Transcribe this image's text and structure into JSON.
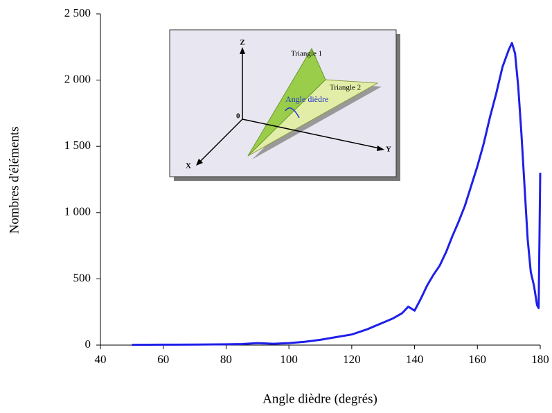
{
  "chart_data": {
    "type": "line",
    "xlabel": "Angle dièdre (degrés)",
    "ylabel": "Nombres d'éléments",
    "x": [
      50,
      60,
      70,
      80,
      85,
      90,
      95,
      100,
      105,
      110,
      115,
      120,
      125,
      130,
      133,
      136,
      138,
      140,
      142,
      144,
      146,
      148,
      150,
      152,
      154,
      156,
      158,
      160,
      162,
      164,
      166,
      168,
      170,
      171,
      172,
      173,
      174,
      175,
      176,
      177,
      178,
      179,
      179.5,
      180
    ],
    "values": [
      2,
      3,
      4,
      6,
      8,
      15,
      10,
      15,
      25,
      40,
      60,
      80,
      120,
      170,
      200,
      240,
      290,
      260,
      350,
      450,
      530,
      600,
      700,
      820,
      930,
      1050,
      1200,
      1350,
      1520,
      1720,
      1900,
      2100,
      2230,
      2280,
      2200,
      1950,
      1600,
      1200,
      800,
      550,
      450,
      300,
      280,
      1300
    ],
    "color": "#1f1fe8",
    "xlim": [
      40,
      180
    ],
    "xticks": [
      40,
      60,
      80,
      100,
      120,
      140,
      160,
      180
    ],
    "ylim": [
      0,
      2500
    ],
    "yticks": [
      0,
      500,
      {
        "value": 1000,
        "label": "1 000"
      },
      {
        "value": 1500,
        "label": "1 500"
      },
      {
        "value": 2000,
        "label": "2 000"
      },
      {
        "value": 2500,
        "label": "2 500"
      }
    ],
    "grid": false,
    "annotations": [
      "Z",
      "Triangle 1",
      "Triangle 2",
      "Angle dièdre",
      "0",
      "Y",
      "X"
    ]
  }
}
